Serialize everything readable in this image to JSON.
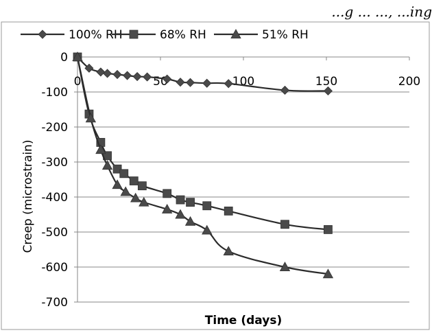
{
  "caption_fragment": "...g ... ..., ...ing",
  "chart_data": {
    "type": "line",
    "title": "",
    "xlabel": "Time  (days)",
    "ylabel": "Creep  (microstrain)",
    "xlim": [
      0,
      200
    ],
    "ylim": [
      -700,
      0
    ],
    "x_ticks": [
      "0",
      "50",
      "100",
      "150",
      "200"
    ],
    "y_ticks": [
      "0",
      "-100",
      "-200",
      "-300",
      "-400",
      "-500",
      "-600",
      "-700"
    ],
    "grid": "horizontal",
    "legend_position": "top",
    "series": [
      {
        "name": "100% RH",
        "marker": "diamond",
        "color": "#4a4a4a",
        "x": [
          0,
          7,
          14,
          18,
          24,
          30,
          36,
          42,
          54,
          62,
          68,
          78,
          91,
          125,
          151
        ],
        "y": [
          0,
          -32,
          -43,
          -47,
          -50,
          -53,
          -56,
          -57,
          -63,
          -72,
          -73,
          -75,
          -76,
          -95,
          -97
        ]
      },
      {
        "name": "68% RH",
        "marker": "square",
        "color": "#4a4a4a",
        "x": [
          0,
          7,
          14,
          18,
          24,
          28,
          34,
          39,
          54,
          62,
          68,
          78,
          91,
          125,
          151
        ],
        "y": [
          0,
          -163,
          -244,
          -282,
          -320,
          -333,
          -354,
          -368,
          -390,
          -408,
          -415,
          -425,
          -440,
          -478,
          -493
        ]
      },
      {
        "name": "51% RH",
        "marker": "triangle",
        "color": "#4a4a4a",
        "x": [
          0,
          8,
          14,
          18,
          24,
          29,
          35,
          40,
          54,
          62,
          68,
          78,
          91,
          125,
          151
        ],
        "y": [
          0,
          -175,
          -265,
          -310,
          -365,
          -385,
          -403,
          -415,
          -435,
          -450,
          -470,
          -495,
          -555,
          -600,
          -620
        ]
      }
    ]
  }
}
